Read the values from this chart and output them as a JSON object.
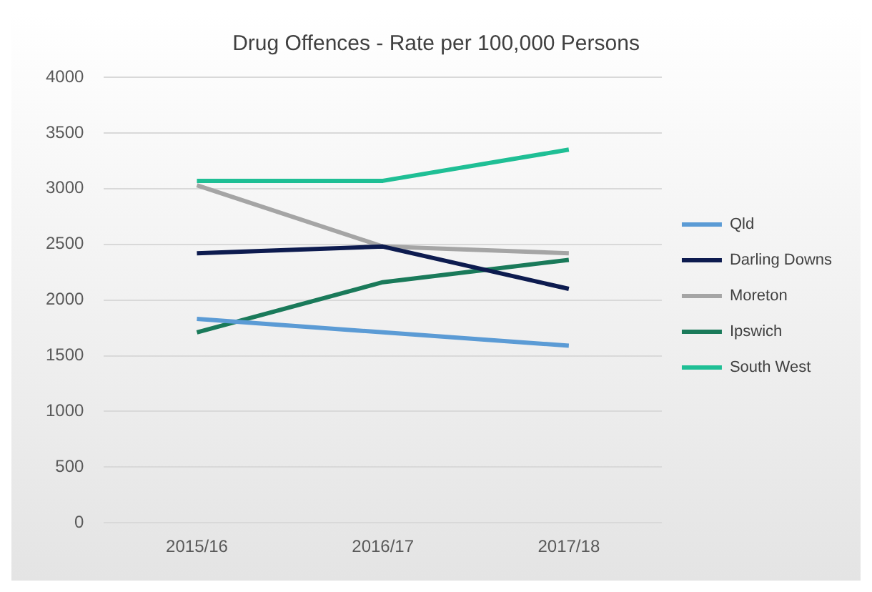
{
  "chart_data": {
    "type": "line",
    "title": "Drug Offences - Rate per 100,000 Persons",
    "categories": [
      "2015/16",
      "2016/17",
      "2017/18"
    ],
    "series": [
      {
        "name": "Qld",
        "color": "#5b9bd5",
        "values": [
          1830,
          1710,
          1590
        ]
      },
      {
        "name": "Darling Downs",
        "color": "#0d1b4f",
        "values": [
          2420,
          2480,
          2100
        ]
      },
      {
        "name": "Moreton",
        "color": "#a5a5a5",
        "values": [
          3030,
          2480,
          2420
        ]
      },
      {
        "name": "Ipswich",
        "color": "#1a7a5a",
        "values": [
          1710,
          2160,
          2360
        ]
      },
      {
        "name": "South West",
        "color": "#1fbf95",
        "values": [
          3070,
          3070,
          3350
        ]
      }
    ],
    "ylim": [
      0,
      4000
    ],
    "yticks": [
      0,
      500,
      1000,
      1500,
      2000,
      2500,
      3000,
      3500,
      4000
    ],
    "grid": "y",
    "legend": "right",
    "marker": "none",
    "line_style": "solid"
  }
}
